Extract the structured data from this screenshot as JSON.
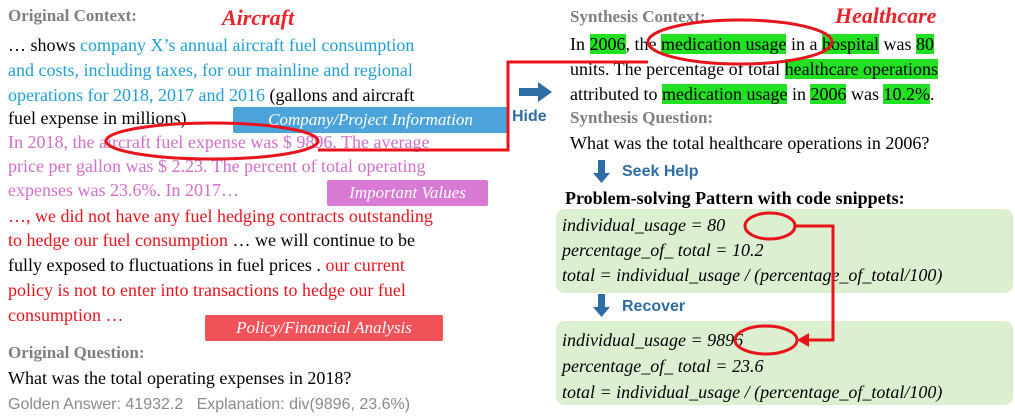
{
  "original": {
    "context_label": "Original Context:",
    "domain": "Aircraft",
    "context_lines": [
      [
        "… shows ",
        "company X’s annual aircraft fuel consumption"
      ],
      [
        "and costs, including taxes, for our mainline and regional"
      ],
      [
        "operations for 2018, 2017 and 2016",
        " (gallons and aircraft"
      ],
      [
        "fuel expense in millions) ."
      ],
      [
        "In 2018, the aircraft fuel expense was $ 9896. The average"
      ],
      [
        "price per gallon was $ 2.23. The percent of total operating"
      ],
      [
        "expenses was 23.6%. In 2017…"
      ],
      [
        "…, we did not have any fuel hedging contracts outstanding"
      ],
      [
        "to hedge our fuel consumption",
        " … we will continue to be"
      ],
      [
        "fully exposed to fluctuations in fuel prices . ",
        "our current"
      ],
      [
        "policy is not to enter into transactions to hedge our fuel"
      ],
      [
        "consumption …"
      ]
    ],
    "tags": [
      "Company/Project Information",
      "Important Values",
      "Policy/Financial Analysis"
    ],
    "question_label": "Original Question:",
    "question": "What was the total operating expenses in 2018?",
    "answer": "Golden Answer: 41932.2",
    "explanation": "Explanation: div(9896, 23.6%)"
  },
  "hide_label": "Hide",
  "synthesis": {
    "context_label": "Synthesis Context:",
    "domain": "Healthcare",
    "context_lines": [
      [
        "In ",
        "2006",
        ", the ",
        "medication usage",
        " in a ",
        "hospital",
        " was ",
        "80"
      ],
      [
        "units. The percentage of total ",
        "healthcare operations"
      ],
      [
        "attributed to ",
        "medication usage",
        " in ",
        "2006",
        " was ",
        "10.2%",
        "."
      ]
    ],
    "question_label": "Synthesis Question:",
    "question": "What was the total healthcare operations in 2006?"
  },
  "seek_help_label": "Seek Help",
  "pattern_label": "Problem-solving Pattern with code snippets:",
  "pattern_code": [
    "individual_usage = 80",
    "percentage_of_ total = 10.2",
    "total = individual_usage / (percentage_of_total/100)"
  ],
  "recover_label": "Recover",
  "recovered_code": [
    "individual_usage = 9896",
    "percentage_of_ total = 23.6",
    "total = individual_usage / (percentage_of_total/100)"
  ]
}
